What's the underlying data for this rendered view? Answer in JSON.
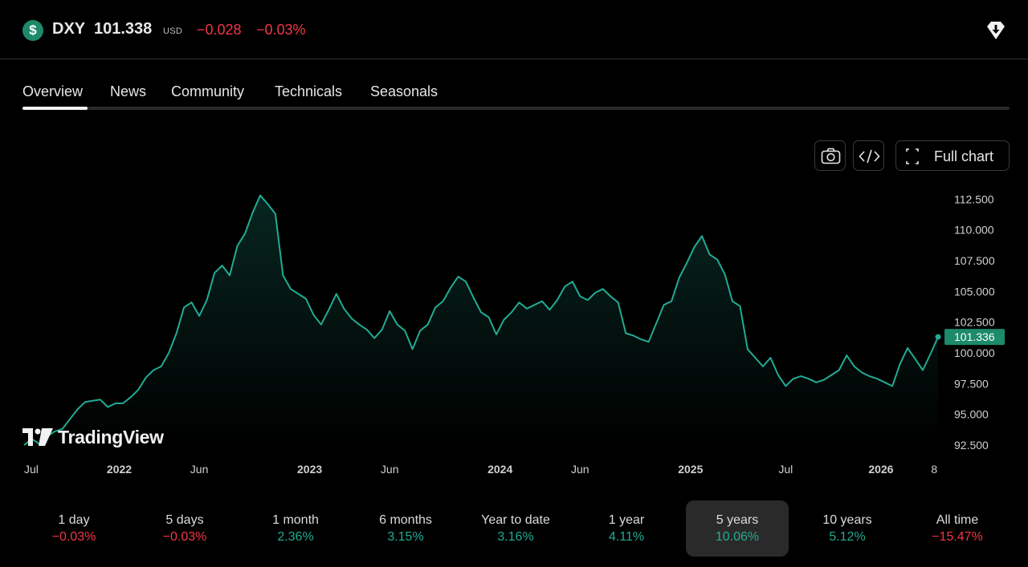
{
  "symbol": {
    "ticker": "DXY",
    "price": "101.338",
    "currency": "USD",
    "change": "−0.028",
    "change_percent": "−0.03%",
    "icon": "dollar-sign-icon"
  },
  "tabs": [
    {
      "label": "Overview",
      "active": true
    },
    {
      "label": "News",
      "active": false
    },
    {
      "label": "Community",
      "active": false
    },
    {
      "label": "Technicals",
      "active": false
    },
    {
      "label": "Seasonals",
      "active": false
    }
  ],
  "toolbar": {
    "snapshot_icon": "camera-icon",
    "embed_icon": "code-icon",
    "full_chart_label": "Full chart"
  },
  "branding": "TradingView",
  "colors": {
    "line": "#22ab94",
    "negative": "#f23645",
    "positive": "#22ab94",
    "price_tag": "#1d8a69"
  },
  "chart_data": {
    "type": "area",
    "last_price_label": "101.336",
    "y_ticks": [
      "112.500",
      "110.000",
      "107.500",
      "105.000",
      "102.500",
      "100.000",
      "97.500",
      "95.000",
      "92.500"
    ],
    "ylim": [
      92.5,
      113.5
    ],
    "x_ticks": [
      {
        "label": "Jul",
        "bold": false
      },
      {
        "label": "2022",
        "bold": true
      },
      {
        "label": "Jun",
        "bold": false
      },
      {
        "label": "2023",
        "bold": true
      },
      {
        "label": "Jun",
        "bold": false
      },
      {
        "label": "2024",
        "bold": true
      },
      {
        "label": "Jun",
        "bold": false
      },
      {
        "label": "2025",
        "bold": true
      },
      {
        "label": "Jul",
        "bold": false
      },
      {
        "label": "2026",
        "bold": true
      },
      {
        "label": "8",
        "bold": false
      }
    ],
    "x_tick_dates": [
      2021.5,
      2022.0,
      2022.42,
      2023.0,
      2023.42,
      2024.0,
      2024.42,
      2025.0,
      2025.5,
      2026.0,
      2026.28
    ],
    "x": [
      2021.5,
      2021.54,
      2021.58,
      2021.62,
      2021.66,
      2021.7,
      2021.74,
      2021.78,
      2021.82,
      2021.86,
      2021.9,
      2021.94,
      2021.98,
      2022.02,
      2022.06,
      2022.1,
      2022.14,
      2022.18,
      2022.22,
      2022.26,
      2022.3,
      2022.34,
      2022.38,
      2022.42,
      2022.46,
      2022.5,
      2022.54,
      2022.58,
      2022.62,
      2022.66,
      2022.7,
      2022.74,
      2022.78,
      2022.82,
      2022.86,
      2022.9,
      2022.94,
      2022.98,
      2023.02,
      2023.06,
      2023.1,
      2023.14,
      2023.18,
      2023.22,
      2023.26,
      2023.3,
      2023.34,
      2023.38,
      2023.42,
      2023.46,
      2023.5,
      2023.54,
      2023.58,
      2023.62,
      2023.66,
      2023.7,
      2023.74,
      2023.78,
      2023.82,
      2023.86,
      2023.9,
      2023.94,
      2023.98,
      2024.02,
      2024.06,
      2024.1,
      2024.14,
      2024.18,
      2024.22,
      2024.26,
      2024.3,
      2024.34,
      2024.38,
      2024.42,
      2024.46,
      2024.5,
      2024.54,
      2024.58,
      2024.62,
      2024.66,
      2024.7,
      2024.74,
      2024.78,
      2024.82,
      2024.86,
      2024.9,
      2024.94,
      2024.98,
      2025.02,
      2025.06,
      2025.1,
      2025.14,
      2025.18,
      2025.22,
      2025.26,
      2025.3,
      2025.34,
      2025.38,
      2025.42,
      2025.46,
      2025.5,
      2025.54,
      2025.58,
      2025.62,
      2025.66,
      2025.7,
      2025.74,
      2025.78,
      2025.82,
      2025.86,
      2025.9,
      2025.94,
      2025.98,
      2026.02,
      2026.06,
      2026.1,
      2026.14,
      2026.18,
      2026.22,
      2026.26,
      2026.3
    ],
    "values": [
      92.5,
      93.0,
      92.6,
      93.2,
      93.6,
      93.8,
      94.6,
      95.4,
      96.0,
      96.1,
      96.2,
      95.6,
      95.9,
      95.9,
      96.4,
      97.0,
      98.0,
      98.6,
      98.9,
      100.0,
      101.6,
      103.7,
      104.1,
      103.0,
      104.3,
      106.5,
      107.1,
      106.3,
      108.7,
      109.7,
      111.4,
      112.8,
      112.1,
      111.3,
      106.3,
      105.2,
      104.8,
      104.4,
      103.1,
      102.3,
      103.5,
      104.8,
      103.6,
      102.8,
      102.3,
      101.9,
      101.2,
      101.9,
      103.4,
      102.3,
      101.8,
      100.3,
      101.8,
      102.3,
      103.7,
      104.2,
      105.3,
      106.2,
      105.8,
      104.5,
      103.3,
      102.9,
      101.5,
      102.7,
      103.3,
      104.1,
      103.6,
      103.9,
      104.2,
      103.5,
      104.3,
      105.4,
      105.8,
      104.6,
      104.3,
      104.9,
      105.2,
      104.6,
      104.1,
      101.6,
      101.4,
      101.1,
      100.9,
      102.4,
      103.9,
      104.2,
      106.1,
      107.3,
      108.6,
      109.5,
      108.0,
      107.6,
      106.4,
      104.2,
      103.8,
      100.3,
      99.6,
      98.9,
      99.6,
      98.2,
      97.3,
      97.9,
      98.1,
      97.9,
      97.6,
      97.8,
      98.2,
      98.6,
      99.8,
      98.9,
      98.4,
      98.1,
      97.9,
      97.6,
      97.3,
      99.1,
      100.4,
      99.5,
      98.6,
      99.9,
      101.3
    ],
    "grid": false,
    "legend": "none"
  },
  "timeframes": [
    {
      "label": "1 day",
      "value": "−0.03%",
      "dir": "neg",
      "active": false
    },
    {
      "label": "5 days",
      "value": "−0.03%",
      "dir": "neg",
      "active": false
    },
    {
      "label": "1 month",
      "value": "2.36%",
      "dir": "pos",
      "active": false
    },
    {
      "label": "6 months",
      "value": "3.15%",
      "dir": "pos",
      "active": false
    },
    {
      "label": "Year to date",
      "value": "3.16%",
      "dir": "pos",
      "active": false
    },
    {
      "label": "1 year",
      "value": "4.11%",
      "dir": "pos",
      "active": false
    },
    {
      "label": "5 years",
      "value": "10.06%",
      "dir": "pos",
      "active": true
    },
    {
      "label": "10 years",
      "value": "5.12%",
      "dir": "pos",
      "active": false
    },
    {
      "label": "All time",
      "value": "−15.47%",
      "dir": "neg",
      "active": false
    }
  ]
}
